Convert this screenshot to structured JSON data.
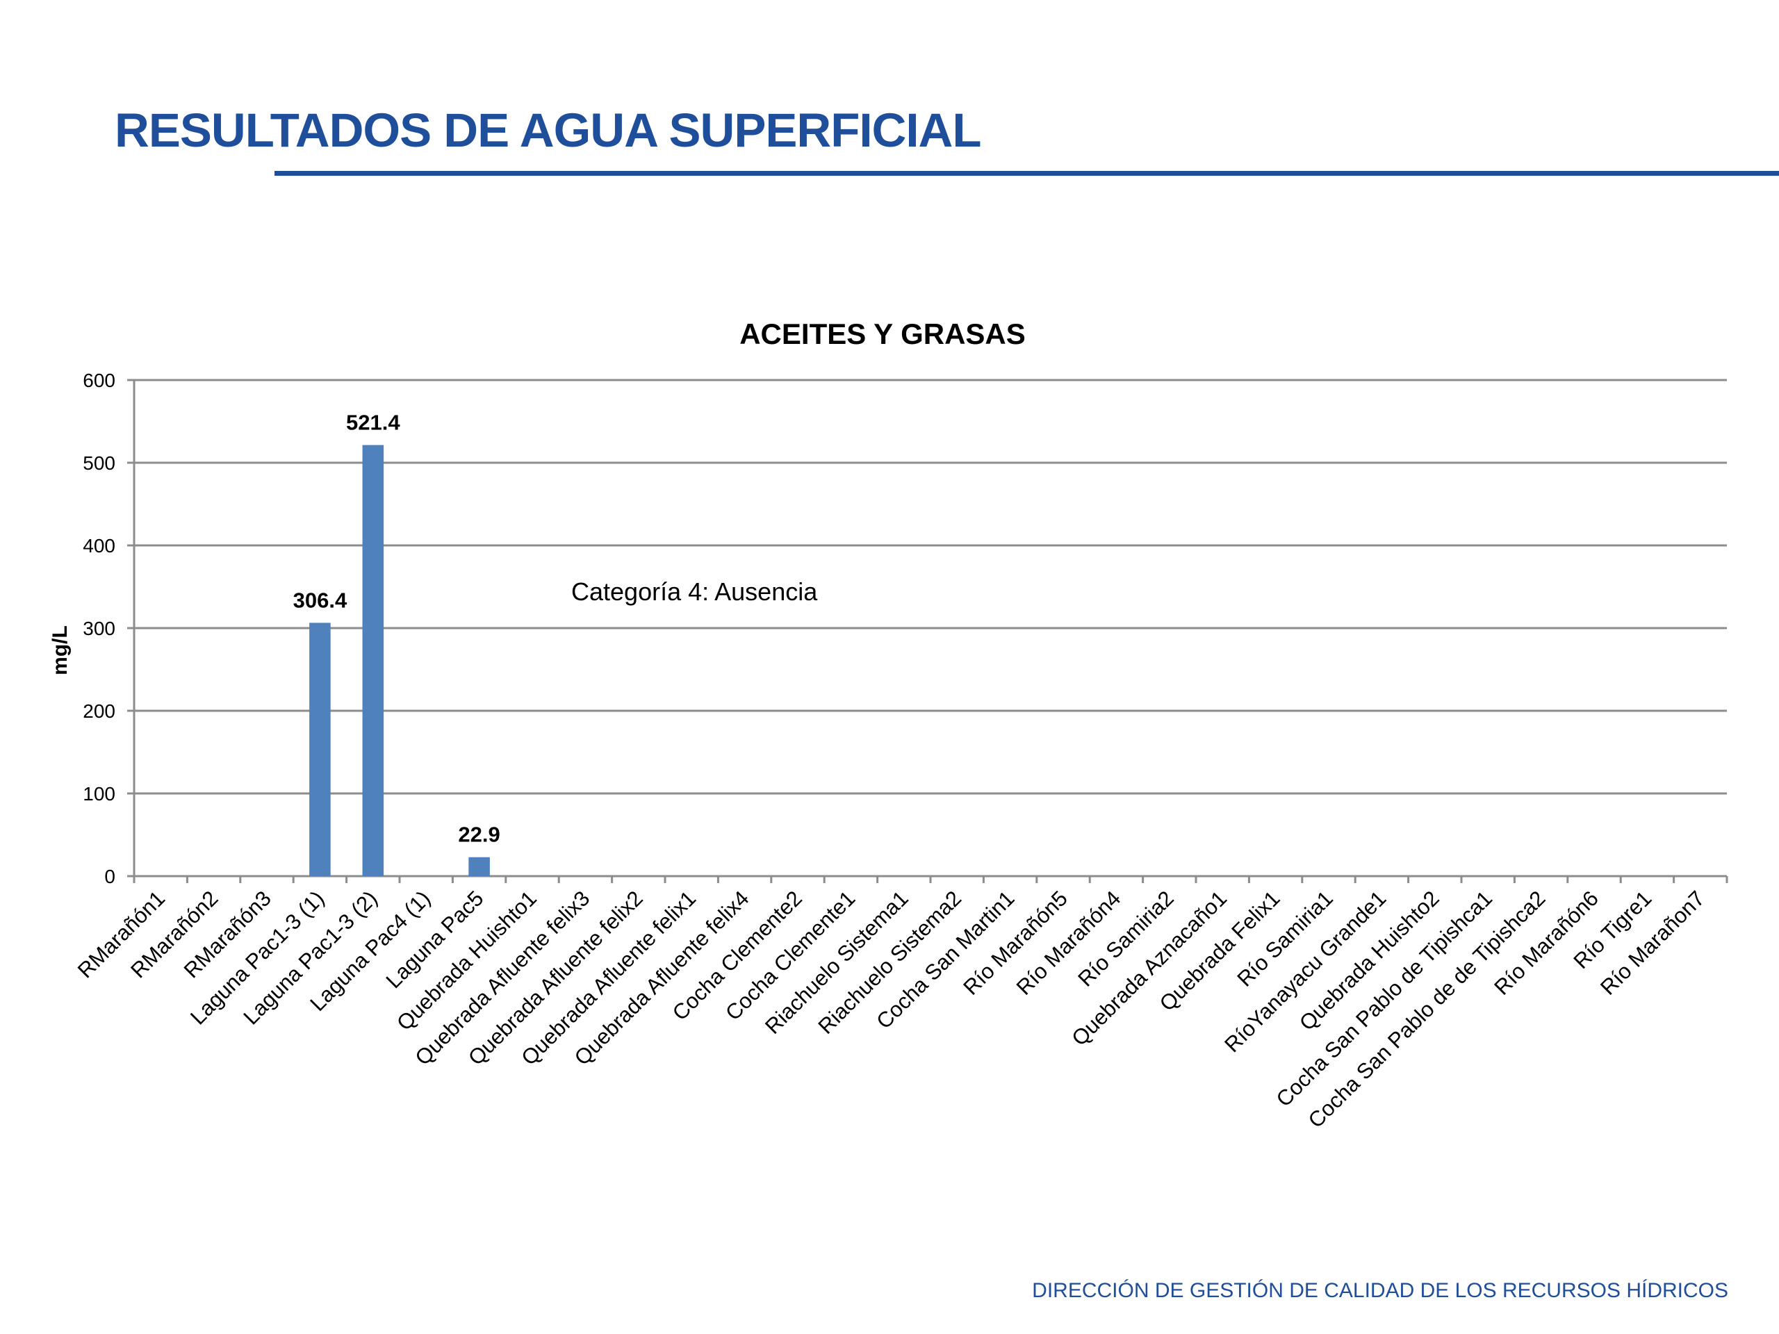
{
  "slide": {
    "title": "RESULTADOS DE AGUA SUPERFICIAL",
    "footer": "DIRECCIÓN DE GESTIÓN DE CALIDAD DE LOS RECURSOS HÍDRICOS"
  },
  "colors": {
    "brand": "#1f4e9a",
    "bar": "#4f81bd",
    "grid": "#8c8c8c",
    "text": "#000000"
  },
  "chart_data": {
    "type": "bar",
    "title": "ACEITES Y GRASAS",
    "xlabel": "",
    "ylabel": "mg/L",
    "ylim": [
      0,
      600
    ],
    "yticks": [
      0,
      100,
      200,
      300,
      400,
      500,
      600
    ],
    "grid": true,
    "legend": "none",
    "annotation": "Categoría 4: Ausencia",
    "categories": [
      "RMarañón1",
      "RMarañón2",
      "RMarañón3",
      "Laguna Pac1-3 (1)",
      "Laguna Pac1-3 (2)",
      "Laguna Pac4 (1)",
      "Laguna Pac5",
      "Quebrada Huishto1",
      "Quebrada Afluente felix3",
      "Quebrada Afluente felix2",
      "Quebrada Afluente felix1",
      "Quebrada Afluente felix4",
      "Cocha Clemente2",
      "Cocha Clemente1",
      "Riachuelo Sistema1",
      "Riachuelo Sistema2",
      "Cocha San Martin1",
      "Río Marañón5",
      "Río Marañón4",
      "Río Samiria2",
      "Quebrada Aznacaño1",
      "Quebrada Felix1",
      "Río Samiria1",
      "RíoYanayacu Grande1",
      "Quebrada Huishto2",
      "Cocha San Pablo de Tipishca1",
      "Cocha San Pablo de de Tipishca2",
      "Río Marañón6",
      "Río Tigre1",
      "Río Marañon7"
    ],
    "values": [
      0,
      0,
      0,
      306.4,
      521.4,
      0,
      22.9,
      0,
      0,
      0,
      0,
      0,
      0,
      0,
      0,
      0,
      0,
      0,
      0,
      0,
      0,
      0,
      0,
      0,
      0,
      0,
      0,
      0,
      0,
      0
    ],
    "data_labels": [
      "",
      "",
      "",
      "306.4",
      "521.4",
      "",
      "22.9",
      "",
      "",
      "",
      "",
      "",
      "",
      "",
      "",
      "",
      "",
      "",
      "",
      "",
      "",
      "",
      "",
      "",
      "",
      "",
      "",
      "",
      "",
      ""
    ]
  }
}
